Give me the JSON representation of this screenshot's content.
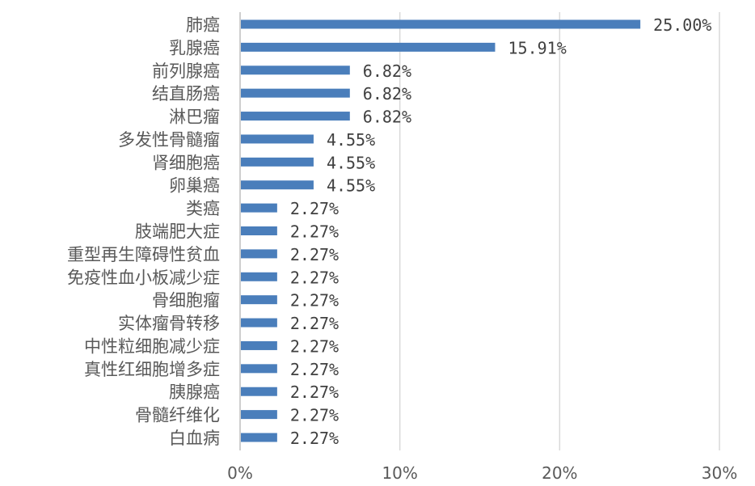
{
  "chart_data": {
    "type": "bar",
    "orientation": "horizontal",
    "title": "",
    "xlabel": "",
    "ylabel": "",
    "xlim": [
      0,
      30
    ],
    "x_ticks": [
      "0%",
      "10%",
      "20%",
      "30%"
    ],
    "grid": "vertical",
    "legend": "none",
    "bar_color": "#4a7ebb",
    "categories": [
      "肺癌",
      "乳腺癌",
      "前列腺癌",
      "结直肠癌",
      "淋巴瘤",
      "多发性骨髓瘤",
      "肾细胞癌",
      "卵巢癌",
      "类癌",
      "肢端肥大症",
      "重型再生障碍性贫血",
      "免疫性血小板减少症",
      "骨细胞瘤",
      "实体瘤骨转移",
      "中性粒细胞减少症",
      "真性红细胞增多症",
      "胰腺癌",
      "骨髓纤维化",
      "白血病"
    ],
    "values": [
      25.0,
      15.91,
      6.82,
      6.82,
      6.82,
      4.55,
      4.55,
      4.55,
      2.27,
      2.27,
      2.27,
      2.27,
      2.27,
      2.27,
      2.27,
      2.27,
      2.27,
      2.27,
      2.27
    ],
    "data_labels": [
      "25.00%",
      "15.91%",
      "6.82%",
      "6.82%",
      "6.82%",
      "4.55%",
      "4.55%",
      "4.55%",
      "2.27%",
      "2.27%",
      "2.27%",
      "2.27%",
      "2.27%",
      "2.27%",
      "2.27%",
      "2.27%",
      "2.27%",
      "2.27%",
      "2.27%"
    ]
  }
}
